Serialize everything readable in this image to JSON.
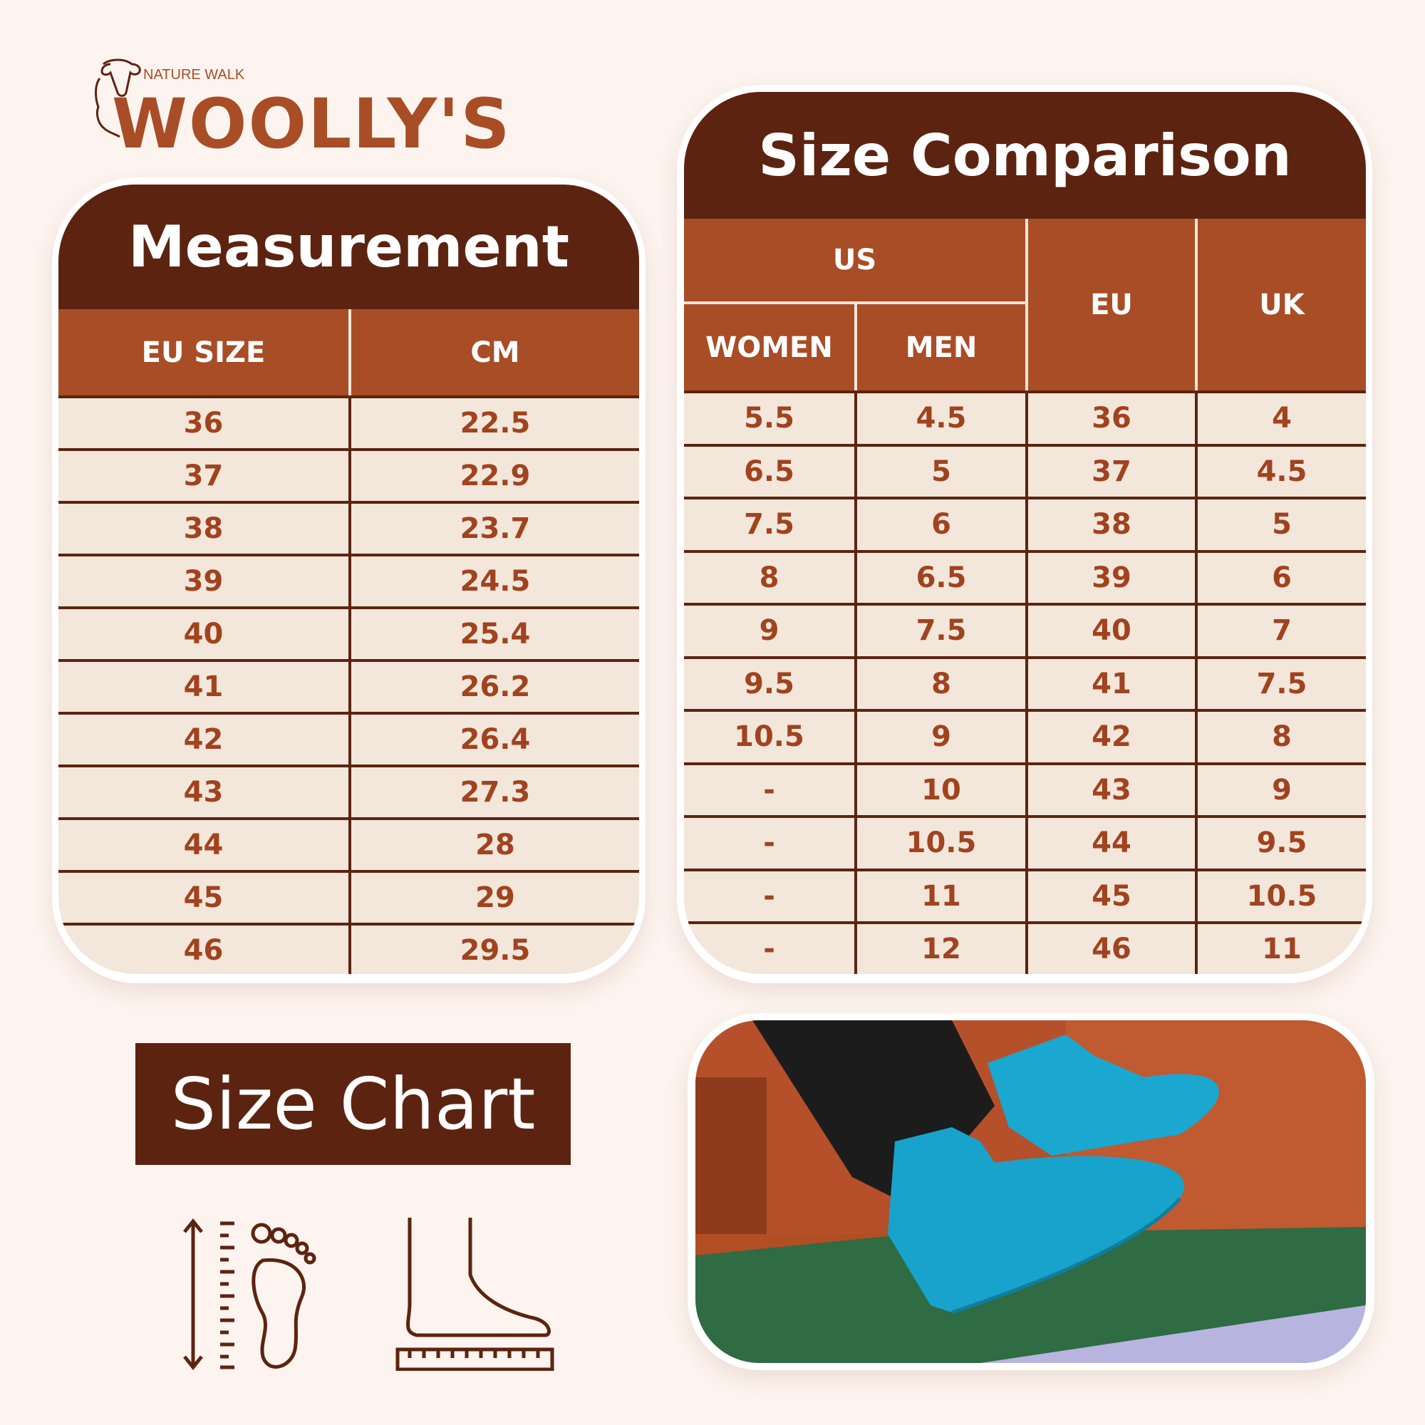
{
  "logo": {
    "tagline": "NATURE WALK",
    "name": "WOOLLY'S",
    "colors": {
      "brand": "#a84d26",
      "l1": "#1fa85a",
      "l2": "#e8333a"
    }
  },
  "measurement": {
    "title": "Measurement",
    "columns": [
      "EU SIZE",
      "CM"
    ],
    "rows": [
      [
        "36",
        "22.5"
      ],
      [
        "37",
        "22.9"
      ],
      [
        "38",
        "23.7"
      ],
      [
        "39",
        "24.5"
      ],
      [
        "40",
        "25.4"
      ],
      [
        "41",
        "26.2"
      ],
      [
        "42",
        "26.4"
      ],
      [
        "43",
        "27.3"
      ],
      [
        "44",
        "28"
      ],
      [
        "45",
        "29"
      ],
      [
        "46",
        "29.5"
      ]
    ]
  },
  "comparison": {
    "title": "Size Comparison",
    "group": "US",
    "columns": [
      "WOMEN",
      "MEN",
      "EU",
      "UK"
    ],
    "rows": [
      [
        "5.5",
        "4.5",
        "36",
        "4"
      ],
      [
        "6.5",
        "5",
        "37",
        "4.5"
      ],
      [
        "7.5",
        "6",
        "38",
        "5"
      ],
      [
        "8",
        "6.5",
        "39",
        "6"
      ],
      [
        "9",
        "7.5",
        "40",
        "7"
      ],
      [
        "9.5",
        "8",
        "41",
        "7.5"
      ],
      [
        "10.5",
        "9",
        "42",
        "8"
      ],
      [
        "-",
        "10",
        "43",
        "9"
      ],
      [
        "-",
        "10.5",
        "44",
        "9.5"
      ],
      [
        "-",
        "11",
        "45",
        "10.5"
      ],
      [
        "-",
        "12",
        "46",
        "11"
      ]
    ]
  },
  "size_chart_label": "Size Chart",
  "colors": {
    "background": "#fdf4ef",
    "dark_brown": "#5c2410",
    "brown": "#a84d26",
    "cream": "#f3e6da",
    "boot": "#1aa8d0"
  }
}
